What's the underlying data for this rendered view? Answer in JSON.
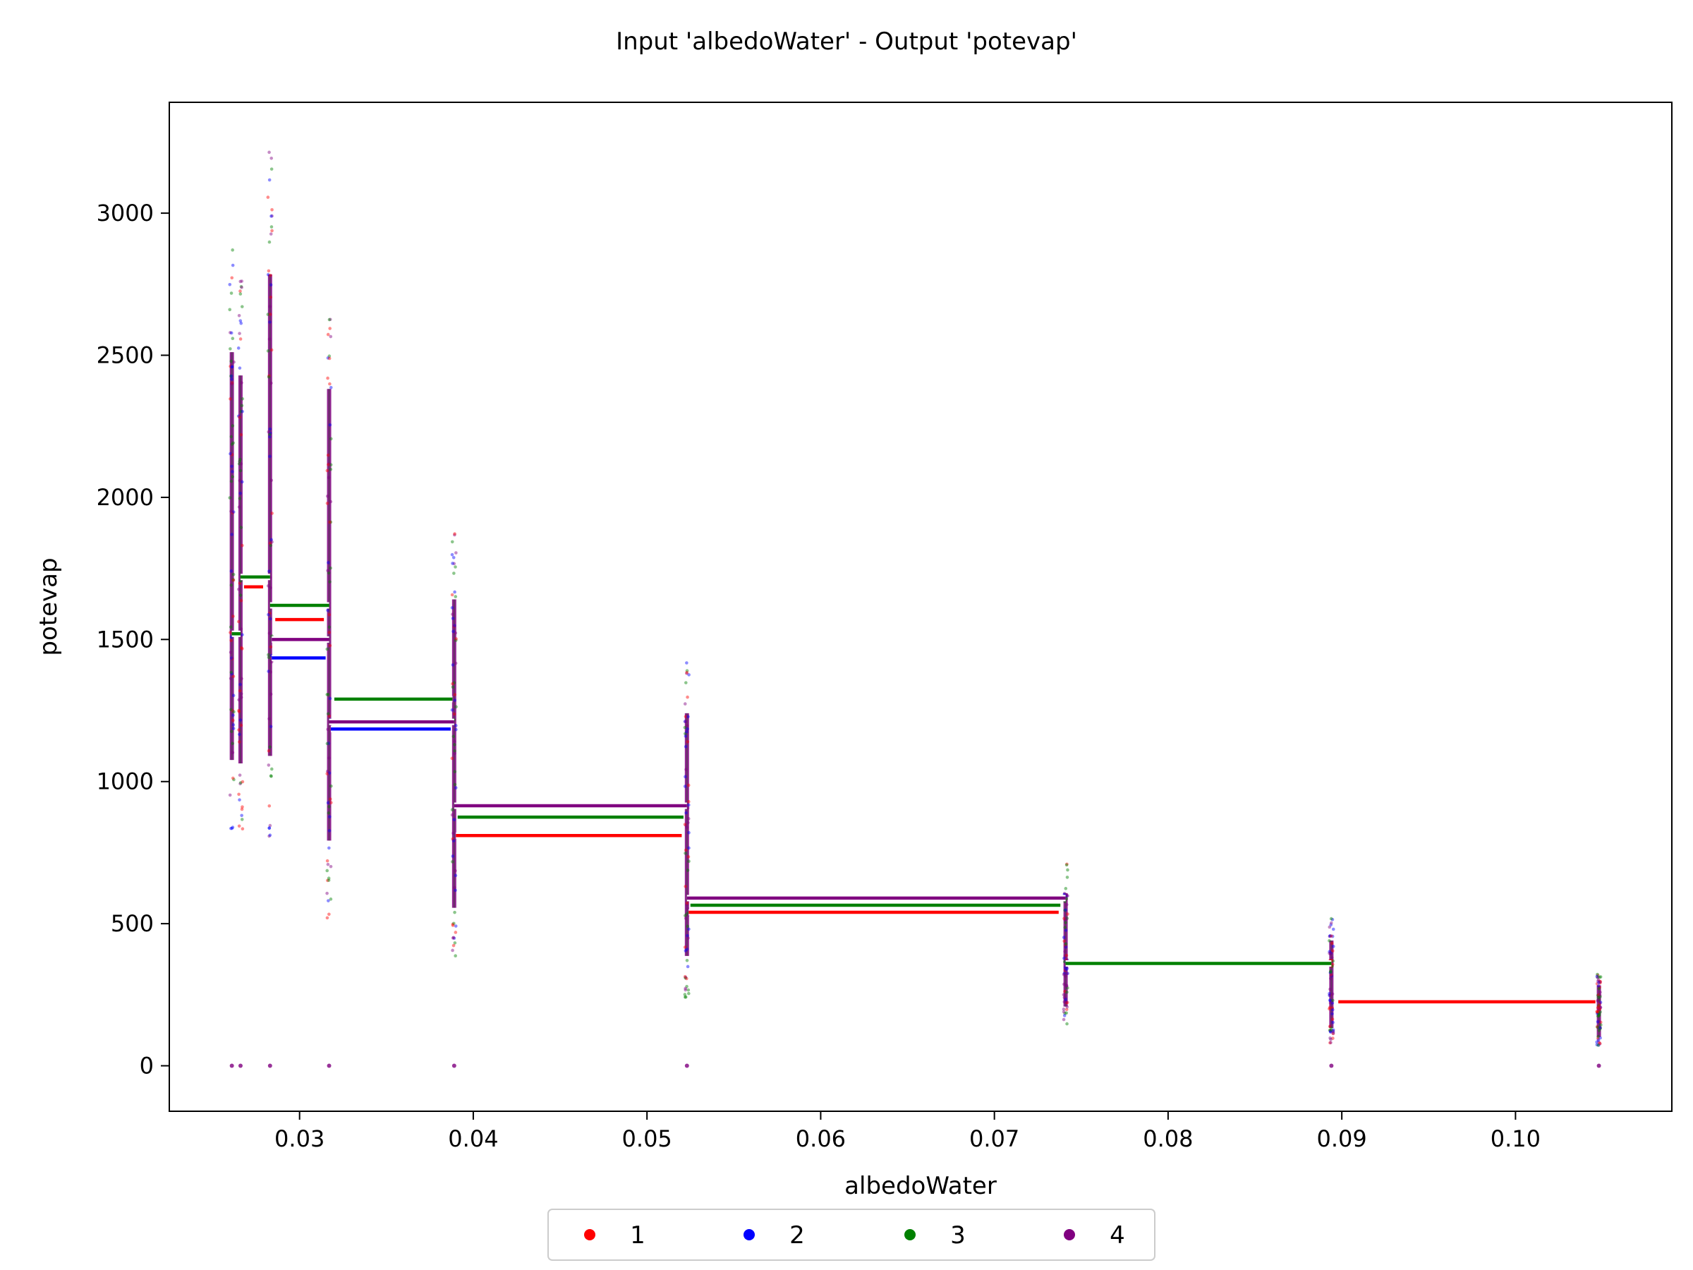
{
  "chart_data": {
    "type": "scatter",
    "title": "Input 'albedoWater' - Output 'potevap'",
    "xlabel": "albedoWater",
    "ylabel": "potevap",
    "xlim": [
      0.0225,
      0.109
    ],
    "ylim": [
      -160,
      3390
    ],
    "x_ticks": [
      "0.03",
      "0.04",
      "0.05",
      "0.06",
      "0.07",
      "0.08",
      "0.09",
      "0.10"
    ],
    "x_tick_values": [
      0.03,
      0.04,
      0.05,
      0.06,
      0.07,
      0.08,
      0.09,
      0.1
    ],
    "y_ticks": [
      "0",
      "500",
      "1000",
      "1500",
      "2000",
      "2500",
      "3000"
    ],
    "y_tick_values": [
      0,
      500,
      1000,
      1500,
      2000,
      2500,
      3000
    ],
    "grid": false,
    "legend_position": "bottom-center",
    "legend": [
      "1",
      "2",
      "3",
      "4"
    ],
    "series_colors": {
      "1": "#ff0000",
      "2": "#0000ff",
      "3": "#008000",
      "4": "#800080"
    },
    "scatter_columns": [
      {
        "x": 0.0261,
        "ymin": 830,
        "ymax": 2880
      },
      {
        "x": 0.0266,
        "ymin": 830,
        "ymax": 2780
      },
      {
        "x": 0.0283,
        "ymin": 800,
        "ymax": 3220
      },
      {
        "x": 0.0317,
        "ymin": 520,
        "ymax": 2790
      },
      {
        "x": 0.0389,
        "ymin": 370,
        "ymax": 1920
      },
      {
        "x": 0.0523,
        "ymin": 240,
        "ymax": 1460
      },
      {
        "x": 0.0741,
        "ymin": 140,
        "ymax": 710
      },
      {
        "x": 0.0894,
        "ymin": 80,
        "ymax": 520
      },
      {
        "x": 0.1048,
        "ymin": 70,
        "ymax": 330
      }
    ],
    "zero_points_x": [
      0.0261,
      0.0266,
      0.0283,
      0.0317,
      0.0389,
      0.0523,
      0.0894,
      0.1048
    ],
    "series": [
      {
        "name": "1",
        "color": "#ff0000",
        "steps": [
          {
            "x0": 0.0268,
            "x1": 0.0279,
            "y": 1685
          },
          {
            "x0": 0.0286,
            "x1": 0.0314,
            "y": 1570
          },
          {
            "x0": 0.039,
            "x1": 0.052,
            "y": 810
          },
          {
            "x0": 0.0524,
            "x1": 0.0737,
            "y": 540
          },
          {
            "x0": 0.0898,
            "x1": 0.1046,
            "y": 225
          }
        ]
      },
      {
        "name": "2",
        "color": "#0000ff",
        "steps": [
          {
            "x0": 0.0284,
            "x1": 0.0315,
            "y": 1435
          },
          {
            "x0": 0.0318,
            "x1": 0.0387,
            "y": 1185
          }
        ]
      },
      {
        "name": "3",
        "color": "#008000",
        "steps": [
          {
            "x0": 0.0261,
            "x1": 0.0266,
            "y": 1520
          },
          {
            "x0": 0.0266,
            "x1": 0.0283,
            "y": 1720
          },
          {
            "x0": 0.0283,
            "x1": 0.0317,
            "y": 1620
          },
          {
            "x0": 0.032,
            "x1": 0.0388,
            "y": 1290
          },
          {
            "x0": 0.0391,
            "x1": 0.0521,
            "y": 875
          },
          {
            "x0": 0.0525,
            "x1": 0.0738,
            "y": 565
          },
          {
            "x0": 0.0741,
            "x1": 0.0894,
            "y": 360
          }
        ]
      },
      {
        "name": "4",
        "color": "#800080",
        "steps": [
          {
            "x0": 0.0284,
            "x1": 0.0317,
            "y": 1500
          },
          {
            "x0": 0.0317,
            "x1": 0.0389,
            "y": 1210
          },
          {
            "x0": 0.0389,
            "x1": 0.0523,
            "y": 915
          },
          {
            "x0": 0.0523,
            "x1": 0.0741,
            "y": 590
          }
        ]
      }
    ]
  }
}
